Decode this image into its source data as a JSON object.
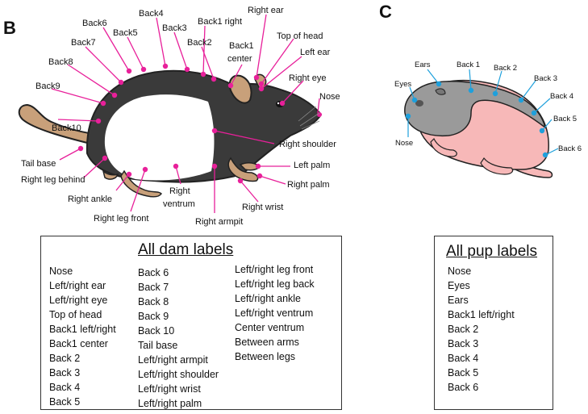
{
  "panels": {
    "dam": "B",
    "pup": "C"
  },
  "dam_callouts": {
    "back4": "Back4",
    "back6": "Back6",
    "back3": "Back3",
    "back5": "Back5",
    "back1_right": "Back1 right",
    "right_ear": "Right ear",
    "back2": "Back2",
    "back7": "Back7",
    "back1_center_a": "Back1",
    "back1_center_b": "center",
    "top_of_head": "Top of head",
    "back8": "Back8",
    "left_ear": "Left ear",
    "right_eye": "Right eye",
    "back9": "Back9",
    "nose": "Nose",
    "back10": "Back10",
    "right_shoulder": "Right shoulder",
    "tail_base": "Tail base",
    "left_palm": "Left palm",
    "right_leg_behind": "Right leg behind",
    "right_palm": "Right palm",
    "right_ankle": "Right ankle",
    "right_ventrum_a": "Right",
    "right_ventrum_b": "ventrum",
    "right_wrist": "Right wrist",
    "right_leg_front": "Right leg front",
    "right_armpit": "Right armpit"
  },
  "pup_callouts": {
    "ears": "Ears",
    "back1": "Back 1",
    "back2": "Back 2",
    "eyes": "Eyes",
    "back3": "Back 3",
    "back4": "Back 4",
    "nose": "Nose",
    "back5": "Back 5",
    "back6": "Back 6"
  },
  "dam_box": {
    "title": "All dam labels",
    "col1": [
      "Nose",
      "Left/right ear",
      "Left/right eye",
      "Top of head",
      "Back1 left/right",
      "Back1 center",
      "Back 2",
      "Back 3",
      "Back 4",
      "Back 5"
    ],
    "col2": [
      "Back 6",
      "Back 7",
      "Back 8",
      "Back 9",
      "Back 10",
      "Tail base",
      "Left/right armpit",
      "Left/right shoulder",
      "Left/right wrist",
      "Left/right palm"
    ],
    "col3": [
      "Left/right leg front",
      "Left/right leg back",
      "Left/right ankle",
      "Left/right ventrum",
      "Center ventrum",
      "Between arms",
      "Between legs"
    ]
  },
  "pup_box": {
    "title": "All pup labels",
    "items": [
      "Nose",
      "Eyes",
      "Ears",
      "Back1 left/right",
      "Back 2",
      "Back 3",
      "Back 4",
      "Back 5",
      "Back 6"
    ]
  },
  "colors": {
    "dam_marker": "#e8209a",
    "pup_marker": "#1ea0dc",
    "dam_fur": "#3a3a3a",
    "pup_body": "#f7b8b8"
  }
}
